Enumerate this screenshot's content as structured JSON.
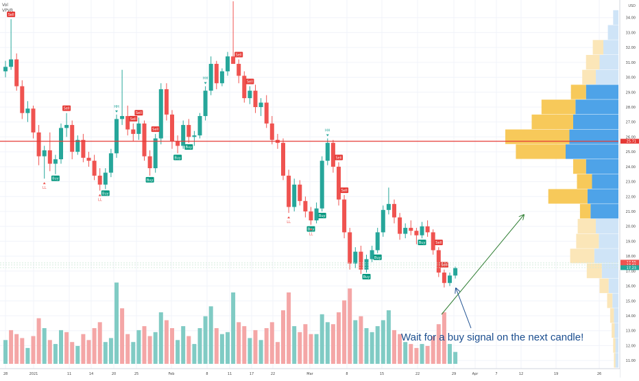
{
  "indicators": [
    "Vol",
    "VPVR"
  ],
  "colors": {
    "up": "#26a69a",
    "down": "#ef5350",
    "vol_up": "#80cbc4",
    "vol_down": "#f4a6a6",
    "hline": "#e53935",
    "arrow": "#2e7d32",
    "annotation": "#1a4d8f",
    "vp_up": "#4ea3e8",
    "vp_down": "#f7c95a",
    "vp_up_light": "#cfe4f7",
    "vp_down_light": "#fbe6b8",
    "buy": "#089981",
    "buy_strong": "#00e676",
    "sell": "#e53935",
    "hh_label": "#26a69a",
    "ll_label": "#ef5350"
  },
  "annotation": "Wait for a buy signal on the next candle!",
  "chart_data": {
    "type": "candlestick",
    "currency": "USD",
    "ylim": [
      10.5,
      35.0
    ],
    "y_ticks": [
      "11.00",
      "12.00",
      "13.00",
      "14.00",
      "15.00",
      "16.00",
      "17.00",
      "18.00",
      "19.00",
      "20.00",
      "21.00",
      "22.00",
      "23.00",
      "24.00",
      "25.00",
      "26.00",
      "27.00",
      "28.00",
      "29.00",
      "30.00",
      "31.00",
      "32.00",
      "33.00",
      "34.00"
    ],
    "x_ticks": [
      "28",
      "2021",
      "11",
      "14",
      "20",
      "25",
      "Feb",
      "8",
      "11",
      "17",
      "22",
      "Mar",
      "8",
      "15",
      "22",
      "29",
      "Apr",
      "7",
      "12",
      "19",
      "26"
    ],
    "price_labels": [
      {
        "text": "25.71",
        "value": 25.71,
        "color": "#e53935"
      },
      {
        "text": "17.55",
        "value": 17.55,
        "color": "#ef5350"
      },
      {
        "text": "17.41",
        "value": 17.41,
        "color": "#ef5350"
      },
      {
        "text": "17.23",
        "value": 17.23,
        "color": "#26a69a"
      }
    ],
    "horizontal_line": 25.71,
    "candles": [
      [
        30.4,
        31.1,
        30.0,
        30.7
      ],
      [
        30.7,
        33.9,
        30.5,
        31.2
      ],
      [
        31.2,
        31.6,
        29.1,
        29.4
      ],
      [
        29.4,
        29.8,
        27.2,
        27.6
      ],
      [
        27.6,
        28.4,
        27.0,
        27.9
      ],
      [
        27.9,
        28.1,
        25.9,
        26.3
      ],
      [
        26.3,
        26.8,
        24.1,
        24.7
      ],
      [
        24.7,
        25.4,
        23.2,
        25.1
      ],
      [
        25.1,
        26.3,
        23.7,
        24.2
      ],
      [
        24.2,
        24.8,
        23.5,
        24.5
      ],
      [
        24.5,
        26.9,
        24.2,
        26.6
      ],
      [
        26.6,
        27.6,
        26.0,
        26.8
      ],
      [
        26.8,
        27.1,
        24.5,
        25.0
      ],
      [
        25.0,
        26.1,
        24.8,
        25.8
      ],
      [
        25.8,
        26.2,
        24.3,
        24.6
      ],
      [
        24.6,
        25.0,
        24.0,
        24.4
      ],
      [
        24.4,
        24.8,
        23.1,
        23.4
      ],
      [
        23.4,
        23.9,
        22.4,
        22.8
      ],
      [
        22.8,
        23.9,
        22.5,
        23.6
      ],
      [
        23.6,
        25.2,
        23.3,
        24.9
      ],
      [
        24.9,
        27.5,
        24.6,
        27.2
      ],
      [
        27.2,
        30.5,
        26.8,
        27.4
      ],
      [
        27.4,
        28.1,
        26.1,
        26.5
      ],
      [
        26.5,
        26.9,
        25.7,
        26.2
      ],
      [
        26.2,
        27.3,
        25.8,
        26.9
      ],
      [
        26.9,
        27.1,
        24.4,
        24.7
      ],
      [
        24.7,
        25.1,
        23.4,
        23.9
      ],
      [
        23.9,
        26.2,
        23.6,
        25.9
      ],
      [
        25.9,
        29.6,
        25.5,
        29.2
      ],
      [
        29.2,
        29.6,
        27.1,
        27.5
      ],
      [
        27.5,
        27.8,
        25.2,
        25.7
      ],
      [
        25.7,
        26.1,
        24.9,
        25.4
      ],
      [
        25.4,
        27.1,
        25.2,
        26.8
      ],
      [
        26.8,
        27.2,
        25.6,
        26.0
      ],
      [
        26.0,
        26.4,
        25.4,
        26.1
      ],
      [
        26.1,
        27.6,
        25.9,
        27.4
      ],
      [
        27.4,
        29.4,
        27.1,
        29.1
      ],
      [
        29.1,
        31.4,
        28.8,
        30.9
      ],
      [
        30.9,
        31.1,
        29.2,
        29.6
      ],
      [
        29.6,
        30.6,
        29.4,
        30.4
      ],
      [
        30.4,
        31.7,
        30.1,
        31.4
      ],
      [
        31.4,
        35.1,
        31.1,
        30.9
      ],
      [
        30.9,
        31.2,
        29.6,
        30.1
      ],
      [
        30.1,
        30.4,
        28.3,
        28.6
      ],
      [
        28.6,
        29.4,
        28.2,
        29.1
      ],
      [
        29.1,
        29.5,
        27.6,
        28.0
      ],
      [
        28.0,
        28.6,
        27.4,
        28.3
      ],
      [
        28.3,
        28.8,
        26.6,
        26.9
      ],
      [
        26.9,
        27.4,
        25.5,
        25.8
      ],
      [
        25.8,
        26.2,
        25.2,
        25.6
      ],
      [
        25.6,
        25.9,
        23.1,
        23.4
      ],
      [
        23.4,
        23.8,
        20.9,
        21.3
      ],
      [
        21.3,
        23.2,
        21.0,
        22.8
      ],
      [
        22.8,
        23.1,
        21.4,
        21.7
      ],
      [
        21.7,
        22.0,
        20.6,
        21.0
      ],
      [
        21.0,
        21.3,
        20.1,
        20.4
      ],
      [
        20.4,
        21.6,
        20.2,
        21.2
      ],
      [
        21.2,
        24.7,
        21.0,
        24.4
      ],
      [
        24.4,
        25.9,
        24.1,
        25.6
      ],
      [
        25.6,
        25.8,
        23.6,
        24.0
      ],
      [
        24.0,
        24.3,
        21.4,
        21.8
      ],
      [
        21.8,
        22.1,
        19.2,
        19.6
      ],
      [
        19.6,
        19.9,
        17.1,
        17.5
      ],
      [
        17.5,
        18.6,
        17.2,
        18.3
      ],
      [
        18.3,
        18.7,
        16.8,
        17.1
      ],
      [
        17.1,
        18.1,
        16.9,
        17.8
      ],
      [
        17.8,
        18.7,
        17.6,
        18.4
      ],
      [
        18.4,
        19.9,
        18.2,
        19.6
      ],
      [
        19.6,
        21.4,
        19.3,
        21.1
      ],
      [
        21.1,
        22.6,
        20.8,
        21.5
      ],
      [
        21.5,
        21.8,
        20.2,
        20.6
      ],
      [
        20.6,
        20.9,
        19.1,
        19.5
      ],
      [
        19.5,
        20.2,
        19.2,
        19.9
      ],
      [
        19.9,
        20.4,
        19.4,
        19.7
      ],
      [
        19.7,
        19.9,
        18.8,
        19.4
      ],
      [
        19.4,
        20.3,
        19.2,
        20.0
      ],
      [
        20.0,
        20.4,
        19.3,
        19.6
      ],
      [
        19.6,
        19.8,
        18.1,
        18.4
      ],
      [
        18.4,
        18.6,
        16.6,
        16.9
      ],
      [
        16.9,
        17.1,
        15.9,
        16.2
      ],
      [
        16.2,
        16.9,
        16.0,
        16.7
      ],
      [
        16.7,
        17.3,
        16.5,
        17.2
      ]
    ],
    "volume": [
      [
        1.2,
        "up"
      ],
      [
        1.7,
        "down"
      ],
      [
        1.5,
        "down"
      ],
      [
        1.3,
        "down"
      ],
      [
        0.8,
        "up"
      ],
      [
        1.4,
        "down"
      ],
      [
        2.3,
        "down"
      ],
      [
        1.8,
        "up"
      ],
      [
        1.2,
        "down"
      ],
      [
        1.0,
        "up"
      ],
      [
        1.7,
        "up"
      ],
      [
        1.6,
        "down"
      ],
      [
        1.1,
        "down"
      ],
      [
        0.9,
        "up"
      ],
      [
        1.5,
        "down"
      ],
      [
        1.2,
        "down"
      ],
      [
        1.8,
        "down"
      ],
      [
        2.1,
        "down"
      ],
      [
        1.1,
        "up"
      ],
      [
        1.3,
        "up"
      ],
      [
        4.1,
        "up"
      ],
      [
        2.8,
        "down"
      ],
      [
        1.5,
        "down"
      ],
      [
        1.1,
        "up"
      ],
      [
        1.7,
        "up"
      ],
      [
        1.9,
        "down"
      ],
      [
        1.4,
        "down"
      ],
      [
        1.6,
        "up"
      ],
      [
        2.6,
        "up"
      ],
      [
        2.2,
        "down"
      ],
      [
        1.8,
        "down"
      ],
      [
        1.2,
        "up"
      ],
      [
        1.9,
        "up"
      ],
      [
        1.4,
        "down"
      ],
      [
        1.0,
        "up"
      ],
      [
        1.8,
        "up"
      ],
      [
        2.4,
        "up"
      ],
      [
        2.9,
        "up"
      ],
      [
        1.8,
        "down"
      ],
      [
        1.5,
        "up"
      ],
      [
        1.6,
        "up"
      ],
      [
        3.6,
        "up"
      ],
      [
        2.1,
        "down"
      ],
      [
        1.9,
        "down"
      ],
      [
        1.3,
        "up"
      ],
      [
        1.7,
        "down"
      ],
      [
        1.2,
        "up"
      ],
      [
        1.8,
        "down"
      ],
      [
        2.1,
        "down"
      ],
      [
        1.1,
        "down"
      ],
      [
        2.7,
        "down"
      ],
      [
        3.6,
        "down"
      ],
      [
        1.9,
        "up"
      ],
      [
        1.6,
        "down"
      ],
      [
        2.0,
        "down"
      ],
      [
        1.5,
        "down"
      ],
      [
        1.5,
        "up"
      ],
      [
        2.5,
        "up"
      ],
      [
        2.1,
        "up"
      ],
      [
        2.0,
        "down"
      ],
      [
        2.6,
        "down"
      ],
      [
        3.2,
        "down"
      ],
      [
        3.8,
        "down"
      ],
      [
        2.2,
        "up"
      ],
      [
        2.4,
        "down"
      ],
      [
        1.8,
        "up"
      ],
      [
        1.6,
        "up"
      ],
      [
        1.9,
        "up"
      ],
      [
        2.2,
        "up"
      ],
      [
        2.7,
        "up"
      ],
      [
        1.7,
        "down"
      ],
      [
        1.5,
        "down"
      ],
      [
        1.1,
        "up"
      ],
      [
        1.0,
        "down"
      ],
      [
        0.8,
        "down"
      ],
      [
        1.0,
        "up"
      ],
      [
        0.9,
        "down"
      ],
      [
        1.4,
        "down"
      ],
      [
        2.0,
        "down"
      ],
      [
        2.6,
        "down"
      ],
      [
        1.0,
        "up"
      ],
      [
        0.6,
        "up"
      ]
    ],
    "volume_max": 4.5,
    "signals": [
      {
        "i": 1,
        "type": "Sell",
        "pos": "above"
      },
      {
        "i": 11,
        "type": "Sell",
        "pos": "above"
      },
      {
        "i": 9,
        "type": "Buy",
        "pos": "below"
      },
      {
        "i": 18,
        "type": "Buy",
        "pos": "below"
      },
      {
        "i": 23,
        "type": "Sell",
        "pos": "above"
      },
      {
        "i": 24,
        "type": "Sell",
        "pos": "above"
      },
      {
        "i": 27,
        "type": "Sell",
        "pos": "above"
      },
      {
        "i": 26,
        "type": "Buy",
        "pos": "below"
      },
      {
        "i": 31,
        "type": "Buy",
        "pos": "below"
      },
      {
        "i": 33,
        "type": "Buy",
        "pos": "below"
      },
      {
        "i": 42,
        "type": "Sell",
        "pos": "above"
      },
      {
        "i": 44,
        "type": "Sell",
        "pos": "above"
      },
      {
        "i": 55,
        "type": "Buy",
        "pos": "below"
      },
      {
        "i": 57,
        "type": "Buy",
        "pos": "below"
      },
      {
        "i": 60,
        "type": "Sell",
        "pos": "above"
      },
      {
        "i": 61,
        "type": "Sell",
        "pos": "above"
      },
      {
        "i": 65,
        "type": "Buy",
        "pos": "below"
      },
      {
        "i": 67,
        "type": "Buy",
        "pos": "below"
      },
      {
        "i": 75,
        "type": "Buy",
        "pos": "below"
      },
      {
        "i": 78,
        "type": "Sell",
        "pos": "above"
      },
      {
        "i": 79,
        "type": "Sell",
        "pos": "above"
      }
    ],
    "pivots": [
      {
        "i": 20,
        "label": "HH",
        "pos": "above"
      },
      {
        "i": 36,
        "label": "HH",
        "pos": "above"
      },
      {
        "i": 41,
        "label": "HH",
        "pos": "above"
      },
      {
        "i": 58,
        "label": "HH",
        "pos": "above"
      },
      {
        "i": 7,
        "label": "LL",
        "pos": "below"
      },
      {
        "i": 17,
        "label": "LL",
        "pos": "below"
      },
      {
        "i": 51,
        "label": "LL",
        "pos": "below"
      },
      {
        "i": 55,
        "label": "LL",
        "pos": "below"
      }
    ],
    "volume_profile": [
      {
        "y0": 10.5,
        "y1": 11.5,
        "up": 4,
        "down": 2,
        "active": false
      },
      {
        "y0": 11.5,
        "y1": 12.5,
        "up": 4,
        "down": 3,
        "active": false
      },
      {
        "y0": 12.5,
        "y1": 13.5,
        "up": 5,
        "down": 4,
        "active": false
      },
      {
        "y0": 13.5,
        "y1": 14.5,
        "up": 6,
        "down": 5,
        "active": false
      },
      {
        "y0": 14.5,
        "y1": 15.5,
        "up": 8,
        "down": 7,
        "active": false
      },
      {
        "y0": 15.5,
        "y1": 16.5,
        "up": 13,
        "down": 12,
        "active": false
      },
      {
        "y0": 16.5,
        "y1": 17.5,
        "up": 22,
        "down": 20,
        "active": false
      },
      {
        "y0": 17.5,
        "y1": 18.5,
        "up": 32,
        "down": 32,
        "active": false
      },
      {
        "y0": 18.5,
        "y1": 19.5,
        "up": 26,
        "down": 30,
        "active": false
      },
      {
        "y0": 19.5,
        "y1": 20.5,
        "up": 30,
        "down": 24,
        "active": false
      },
      {
        "y0": 20.5,
        "y1": 21.5,
        "up": 37,
        "down": 14,
        "active": true
      },
      {
        "y0": 21.5,
        "y1": 22.5,
        "up": 41,
        "down": 52,
        "active": true
      },
      {
        "y0": 22.5,
        "y1": 23.5,
        "up": 35,
        "down": 20,
        "active": true
      },
      {
        "y0": 23.5,
        "y1": 24.5,
        "up": 43,
        "down": 17,
        "active": true
      },
      {
        "y0": 24.5,
        "y1": 25.5,
        "up": 70,
        "down": 66,
        "active": true
      },
      {
        "y0": 25.5,
        "y1": 26.5,
        "up": 65,
        "down": 85,
        "active": true
      },
      {
        "y0": 26.5,
        "y1": 27.5,
        "up": 60,
        "down": 55,
        "active": true
      },
      {
        "y0": 27.5,
        "y1": 28.5,
        "up": 57,
        "down": 45,
        "active": true
      },
      {
        "y0": 28.5,
        "y1": 29.5,
        "up": 43,
        "down": 20,
        "active": true
      },
      {
        "y0": 29.5,
        "y1": 30.5,
        "up": 30,
        "down": 18,
        "active": false
      },
      {
        "y0": 30.5,
        "y1": 31.5,
        "up": 25,
        "down": 18,
        "active": false
      },
      {
        "y0": 31.5,
        "y1": 32.5,
        "up": 20,
        "down": 14,
        "active": false
      },
      {
        "y0": 32.5,
        "y1": 33.5,
        "up": 14,
        "down": 0,
        "active": false
      },
      {
        "y0": 33.5,
        "y1": 34.5,
        "up": 7,
        "down": 0,
        "active": false
      }
    ]
  }
}
